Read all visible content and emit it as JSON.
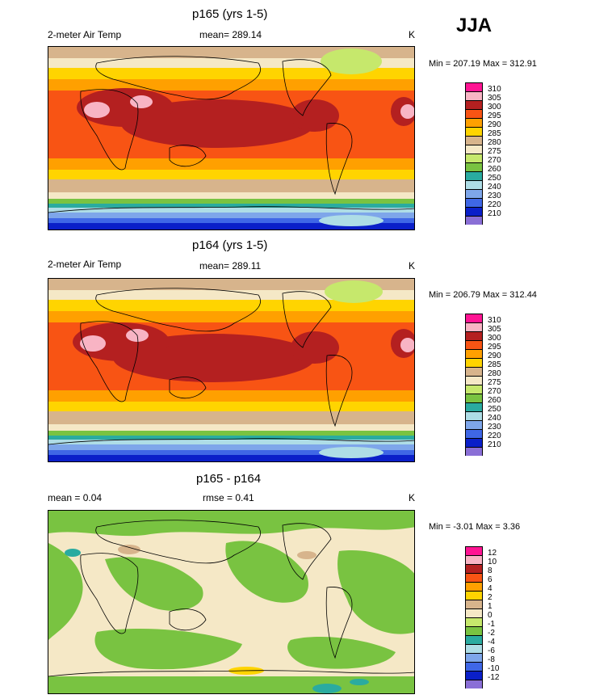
{
  "season": "JJA",
  "panels": [
    {
      "title": "p165 (yrs 1-5)",
      "left_label": "2-meter Air Temp",
      "center_label": "mean= 289.14",
      "right_label": "K",
      "minmax": "Min = 207.19 Max = 312.91",
      "colorbar_labels": [
        "310",
        "305",
        "300",
        "295",
        "290",
        "285",
        "280",
        "275",
        "270",
        "260",
        "250",
        "240",
        "230",
        "220",
        "210"
      ]
    },
    {
      "title": "p164 (yrs 1-5)",
      "left_label": "2-meter Air Temp",
      "center_label": "mean= 289.11",
      "right_label": "K",
      "minmax": "Min = 206.79 Max = 312.44",
      "colorbar_labels": [
        "310",
        "305",
        "300",
        "295",
        "290",
        "285",
        "280",
        "275",
        "270",
        "260",
        "250",
        "240",
        "230",
        "220",
        "210"
      ]
    },
    {
      "title": "p165 - p164",
      "left_label": "mean =  0.04",
      "center_label": "rmse =  0.41",
      "right_label": "K",
      "minmax": "Min = -3.01 Max =  3.36",
      "colorbar_labels": [
        "12",
        "10",
        "8",
        "6",
        "4",
        "2",
        "1",
        "0",
        "-1",
        "-2",
        "-4",
        "-6",
        "-8",
        "-10",
        "-12"
      ]
    }
  ],
  "chart_data": [
    {
      "type": "heatmap",
      "title": "p165 (yrs 1-5)",
      "variable": "2-meter Air Temp",
      "units": "K",
      "mean": 289.14,
      "min": 207.19,
      "max": 312.91,
      "levels": [
        210,
        220,
        230,
        240,
        250,
        260,
        270,
        275,
        280,
        285,
        290,
        295,
        300,
        305,
        310
      ],
      "colors": [
        "#8a6fd6",
        "#0a1fc9",
        "#3f67e6",
        "#7ea6ea",
        "#aedde6",
        "#2aaba0",
        "#79c341",
        "#c6e86c",
        "#f5e8c6",
        "#d7b48c",
        "#ffd400",
        "#ffa000",
        "#f85414",
        "#b42020",
        "#f8b4c4",
        "#ff1493"
      ]
    },
    {
      "type": "heatmap",
      "title": "p164 (yrs 1-5)",
      "variable": "2-meter Air Temp",
      "units": "K",
      "mean": 289.11,
      "min": 206.79,
      "max": 312.44,
      "levels": [
        210,
        220,
        230,
        240,
        250,
        260,
        270,
        275,
        280,
        285,
        290,
        295,
        300,
        305,
        310
      ],
      "colors": [
        "#8a6fd6",
        "#0a1fc9",
        "#3f67e6",
        "#7ea6ea",
        "#aedde6",
        "#2aaba0",
        "#79c341",
        "#c6e86c",
        "#f5e8c6",
        "#d7b48c",
        "#ffd400",
        "#ffa000",
        "#f85414",
        "#b42020",
        "#f8b4c4",
        "#ff1493"
      ]
    },
    {
      "type": "heatmap",
      "title": "p165 - p164",
      "units": "K",
      "mean": 0.04,
      "rmse": 0.41,
      "min": -3.01,
      "max": 3.36,
      "levels": [
        -12,
        -10,
        -8,
        -6,
        -4,
        -2,
        -1,
        0,
        1,
        2,
        4,
        6,
        8,
        10,
        12
      ],
      "colors": [
        "#8a6fd6",
        "#0a1fc9",
        "#3f67e6",
        "#7ea6ea",
        "#aedde6",
        "#2aaba0",
        "#79c341",
        "#c6e86c",
        "#f5e8c6",
        "#d7b48c",
        "#ffd400",
        "#ffa000",
        "#f85414",
        "#b42020",
        "#f8b4c4",
        "#ff1493"
      ]
    }
  ]
}
